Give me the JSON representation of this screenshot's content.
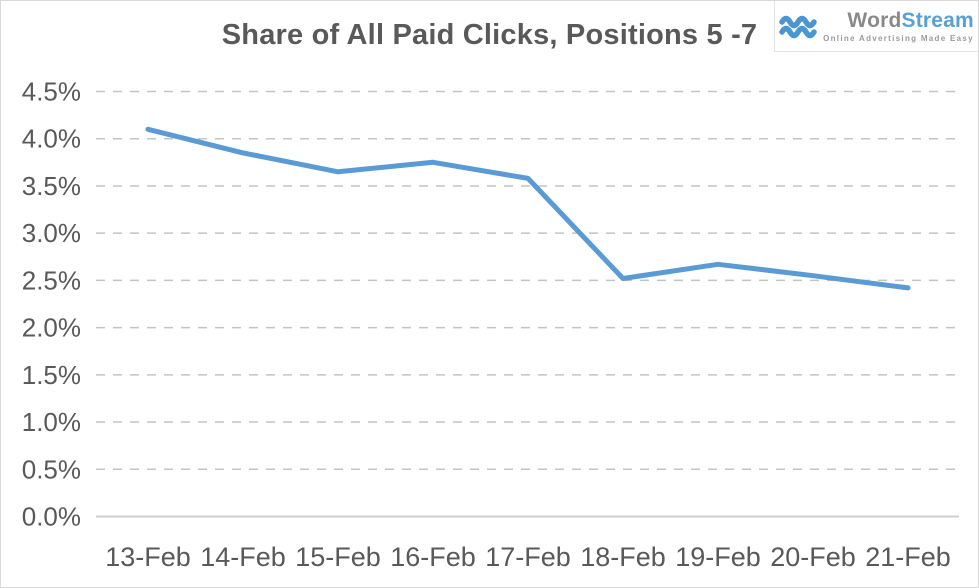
{
  "logo": {
    "icon": "waves-icon",
    "word": "Word",
    "stream": "Stream",
    "tagline": "Online Advertising Made Easy"
  },
  "chart_data": {
    "type": "line",
    "title": "Share of All Paid Clicks, Positions 5 -7",
    "categories": [
      "13-Feb",
      "14-Feb",
      "15-Feb",
      "16-Feb",
      "17-Feb",
      "18-Feb",
      "19-Feb",
      "20-Feb",
      "21-Feb"
    ],
    "series": [
      {
        "name": "Share of All Paid Clicks, Positions 5-7",
        "values": [
          4.1,
          3.85,
          3.65,
          3.75,
          3.58,
          2.52,
          2.67,
          2.55,
          2.42
        ]
      }
    ],
    "unit": "%",
    "ylim": [
      0,
      4.5
    ],
    "ytick_step": 0.5,
    "ytick_labels": [
      "4.5%",
      "4.0%",
      "3.5%",
      "3.0%",
      "2.5%",
      "2.0%",
      "1.5%",
      "1.0%",
      "0.5%",
      "0.0%"
    ],
    "xlabel": "",
    "ylabel": "",
    "grid": "horizontal-dashed",
    "legend": "none",
    "colors": {
      "line": "#5B9BD5",
      "grid": "#c4c4c4",
      "zero_axis": "#cfcfcf",
      "tick_text": "#595959",
      "title_text": "#595959",
      "logo_blue": "#4a95d2",
      "logo_gray": "#8a8a8a"
    }
  }
}
